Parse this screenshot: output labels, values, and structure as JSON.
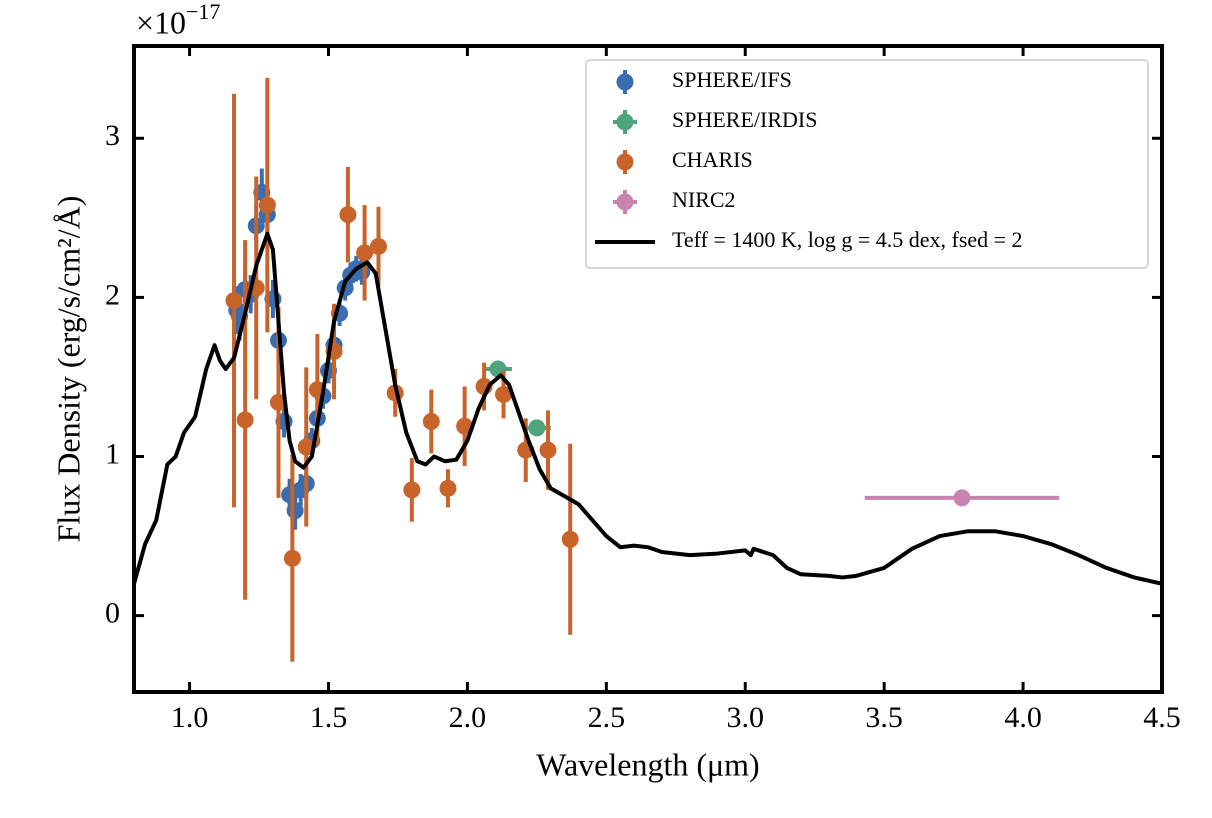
{
  "chart_data": {
    "type": "scatter",
    "x_label": "Wavelength (μm)",
    "y_label": "Flux Density (erg/s/cm²/Å)",
    "y_offset_label": "×10",
    "y_offset_exponent": "−17",
    "xlim": [
      0.8,
      4.5
    ],
    "ylim": [
      -0.48,
      3.58
    ],
    "xticks": [
      {
        "value": 1,
        "label": "1.0"
      },
      {
        "value": 1.5,
        "label": "1.5"
      },
      {
        "value": 2,
        "label": "2.0"
      },
      {
        "value": 2.5,
        "label": "2.5"
      },
      {
        "value": 3,
        "label": "3.0"
      },
      {
        "value": 3.5,
        "label": "3.5"
      },
      {
        "value": 4,
        "label": "4.0"
      },
      {
        "value": 4.5,
        "label": "4.5"
      }
    ],
    "yticks": [
      0,
      1,
      2,
      3
    ],
    "legend": "upper right",
    "series": [
      {
        "name": "SPHERE/IFS",
        "type": "errorbar",
        "color": "#3a6db0",
        "x": [
          1.17,
          1.18,
          1.2,
          1.22,
          1.24,
          1.26,
          1.28,
          1.3,
          1.32,
          1.34,
          1.36,
          1.38,
          1.4,
          1.42,
          1.44,
          1.46,
          1.48,
          1.5,
          1.52,
          1.54,
          1.56,
          1.58,
          1.6,
          1.62
        ],
        "values": [
          1.92,
          1.88,
          2.05,
          2.02,
          2.45,
          2.66,
          2.52,
          1.99,
          1.73,
          1.22,
          0.76,
          0.66,
          0.79,
          0.83,
          1.1,
          1.24,
          1.38,
          1.54,
          1.7,
          1.9,
          2.06,
          2.14,
          2.18,
          2.16
        ],
        "yerr": [
          0.15,
          0.15,
          0.12,
          0.12,
          0.14,
          0.15,
          0.14,
          0.12,
          0.1,
          0.1,
          0.1,
          0.12,
          0.1,
          0.1,
          0.08,
          0.08,
          0.08,
          0.08,
          0.08,
          0.08,
          0.08,
          0.08,
          0.08,
          0.08
        ]
      },
      {
        "name": "SPHERE/IRDIS",
        "type": "errorbar",
        "color": "#4ea47c",
        "x": [
          2.11,
          2.25
        ],
        "values": [
          1.55,
          1.18
        ],
        "yerr": [
          0.03,
          0.05
        ],
        "xerr": [
          0.05,
          0.05
        ]
      },
      {
        "name": "CHARIS",
        "type": "errorbar",
        "color": "#c8642a",
        "x": [
          1.16,
          1.2,
          1.24,
          1.28,
          1.32,
          1.37,
          1.42,
          1.46,
          1.52,
          1.57,
          1.63,
          1.68,
          1.74,
          1.8,
          1.87,
          1.93,
          1.99,
          2.06,
          2.13,
          2.21,
          2.29,
          2.37
        ],
        "values": [
          1.98,
          1.23,
          2.06,
          2.58,
          1.34,
          0.36,
          1.06,
          1.42,
          1.66,
          2.52,
          2.28,
          2.32,
          1.4,
          0.79,
          1.22,
          0.8,
          1.19,
          1.44,
          1.39,
          1.04,
          1.04,
          0.48
        ],
        "yerr": [
          1.3,
          1.13,
          0.7,
          0.8,
          0.6,
          0.65,
          0.5,
          0.35,
          0.3,
          0.3,
          0.3,
          0.25,
          0.15,
          0.2,
          0.2,
          0.12,
          0.25,
          0.15,
          0.15,
          0.2,
          0.25,
          0.6
        ]
      },
      {
        "name": "NIRC2",
        "type": "errorbar",
        "color": "#c983b0",
        "x": [
          3.78
        ],
        "values": [
          0.74
        ],
        "yerr": [
          0.05
        ],
        "xerr": [
          0.35
        ]
      },
      {
        "name": "Teff = 1400 K, log g = 4.5 dex, fsed = 2",
        "type": "line",
        "color": "#000000",
        "x": [
          0.8,
          0.84,
          0.88,
          0.92,
          0.95,
          0.98,
          1.02,
          1.06,
          1.09,
          1.11,
          1.13,
          1.16,
          1.2,
          1.24,
          1.28,
          1.3,
          1.32,
          1.34,
          1.36,
          1.38,
          1.41,
          1.44,
          1.48,
          1.52,
          1.56,
          1.6,
          1.64,
          1.67,
          1.7,
          1.74,
          1.78,
          1.82,
          1.85,
          1.88,
          1.92,
          1.96,
          2.0,
          2.04,
          2.08,
          2.12,
          2.15,
          2.18,
          2.22,
          2.26,
          2.3,
          2.35,
          2.4,
          2.45,
          2.5,
          2.55,
          2.6,
          2.65,
          2.7,
          2.8,
          2.9,
          3.0,
          3.02,
          3.03,
          3.1,
          3.15,
          3.2,
          3.3,
          3.35,
          3.4,
          3.5,
          3.6,
          3.7,
          3.8,
          3.9,
          4.0,
          4.1,
          4.2,
          4.3,
          4.4,
          4.5
        ],
        "values": [
          0.2,
          0.45,
          0.6,
          0.95,
          1.0,
          1.15,
          1.25,
          1.55,
          1.7,
          1.6,
          1.55,
          1.62,
          1.9,
          2.2,
          2.4,
          2.3,
          1.85,
          1.4,
          1.1,
          0.97,
          0.93,
          1.0,
          1.4,
          1.85,
          2.1,
          2.18,
          2.22,
          2.15,
          1.85,
          1.45,
          1.15,
          0.97,
          0.95,
          1.0,
          0.97,
          0.98,
          1.1,
          1.3,
          1.45,
          1.51,
          1.45,
          1.3,
          1.1,
          0.92,
          0.8,
          0.75,
          0.7,
          0.6,
          0.5,
          0.43,
          0.44,
          0.43,
          0.4,
          0.38,
          0.39,
          0.41,
          0.38,
          0.42,
          0.38,
          0.3,
          0.26,
          0.25,
          0.24,
          0.25,
          0.3,
          0.42,
          0.5,
          0.53,
          0.53,
          0.5,
          0.45,
          0.38,
          0.3,
          0.24,
          0.2
        ]
      }
    ]
  }
}
